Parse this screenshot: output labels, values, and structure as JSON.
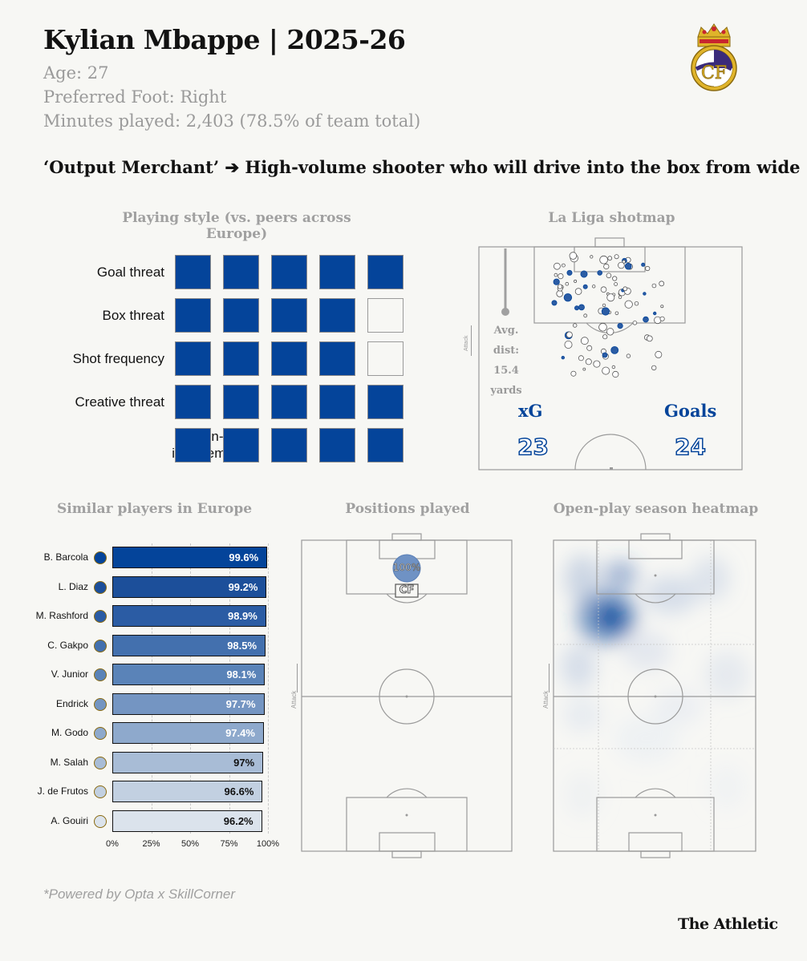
{
  "header": {
    "title": "Kylian Mbappe | 2025-26",
    "age": "Age: 27",
    "foot": "Preferred Foot: Right",
    "minutes": "Minutes played: 2,403 (78.5% of team total)",
    "subtitle": "‘Output Merchant’ ➔ High-volume shooter who will drive into the box from wide"
  },
  "playing_style": {
    "title": "Playing style (vs. peers across Europe)",
    "rows": [
      {
        "label": "Goal threat",
        "filled": 5,
        "of": 5
      },
      {
        "label": "Box threat",
        "filled": 4,
        "of": 5
      },
      {
        "label": "Shot frequency",
        "filled": 4,
        "of": 5
      },
      {
        "label": "Creative threat",
        "filled": 5,
        "of": 5
      },
      {
        "label": "On-ball involvement",
        "filled": 5,
        "of": 5
      }
    ]
  },
  "shotmap": {
    "title": "La Liga shotmap",
    "attack_label": "Attack",
    "avg_dist_lines": [
      "Avg.",
      "dist:",
      "15.4",
      "yards"
    ],
    "xg_label": "xG",
    "xg_value": "23",
    "goals_label": "Goals",
    "goals_value": "24"
  },
  "similar": {
    "title": "Similar players in Europe",
    "axis_ticks": [
      "0%",
      "25%",
      "50%",
      "75%",
      "100%"
    ]
  },
  "chart_data": [
    {
      "type": "bar",
      "orientation": "horizontal",
      "title": "Similar players in Europe",
      "categories": [
        "B. Barcola",
        "L. Diaz",
        "M. Rashford",
        "C. Gakpo",
        "V. Junior",
        "Endrick",
        "M. Godo",
        "M. Salah",
        "J. de Frutos",
        "A. Gouiri"
      ],
      "values": [
        99.6,
        99.2,
        98.9,
        98.5,
        98.1,
        97.7,
        97.4,
        97,
        96.6,
        96.2
      ],
      "value_labels": [
        "99.6%",
        "99.2%",
        "98.9%",
        "98.5%",
        "98.1%",
        "97.7%",
        "97.4%",
        "97%",
        "96.6%",
        "96.2%"
      ],
      "colors": [
        "#04449a",
        "#1c4f9a",
        "#2b5ca4",
        "#4370ae",
        "#5a83b8",
        "#7495c2",
        "#8ea9cc",
        "#a8bcd6",
        "#c2d0e1",
        "#dbe3ec"
      ],
      "xlim": [
        0,
        100
      ],
      "xticks": [
        "0%",
        "25%",
        "50%",
        "75%",
        "100%"
      ],
      "grid": true
    }
  ],
  "positions": {
    "title": "Positions played",
    "attack_label": "Attack",
    "pct": "100%",
    "position": "CF"
  },
  "heatmap": {
    "title": "Open-play season heatmap",
    "attack_label": "Attack"
  },
  "footer": {
    "source": "*Powered by Opta x SkillCorner",
    "brand": "The Athletic"
  },
  "colors": {
    "primary": "#04449a",
    "background": "#f7f7f4",
    "muted": "#9a9a9a",
    "crest_gold": "#e0b42a"
  }
}
